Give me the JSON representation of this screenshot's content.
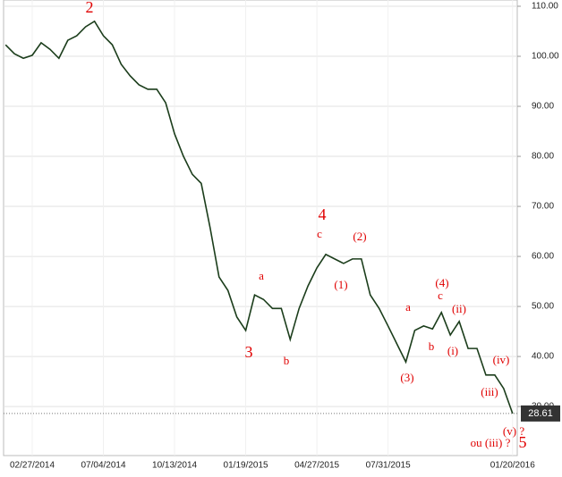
{
  "chart_data": {
    "type": "line",
    "categories": [
      null,
      null,
      null,
      "02/27/2014",
      null,
      null,
      null,
      null,
      null,
      null,
      null,
      "07/04/2014",
      null,
      null,
      null,
      null,
      null,
      null,
      null,
      "10/13/2014",
      null,
      null,
      null,
      null,
      null,
      null,
      null,
      "01/19/2015",
      null,
      null,
      null,
      null,
      null,
      null,
      null,
      "04/27/2015",
      null,
      null,
      null,
      null,
      null,
      null,
      null,
      "07/31/2015",
      null,
      null,
      null,
      null,
      null,
      null,
      null,
      null,
      null,
      null,
      null,
      null,
      null,
      "01/20/2016"
    ],
    "series": [
      {
        "color": "#1b3d1b",
        "values": [
          102.3,
          100.5,
          99.6,
          100.2,
          102.7,
          101.4,
          99.6,
          103.2,
          104.1,
          105.9,
          107,
          104.1,
          102.3,
          98.4,
          96.1,
          94.3,
          93.4,
          93.4,
          90.7,
          84.5,
          80,
          76.4,
          74.6,
          65.7,
          55.9,
          53.2,
          47.9,
          45.2,
          52.3,
          51.4,
          49.6,
          49.6,
          43.4,
          49.6,
          54.1,
          57.7,
          60.4,
          59.5,
          58.6,
          59.5,
          59.5,
          52.3,
          49.6,
          46.1,
          42.5,
          38.9,
          45.2,
          46.1,
          45.5,
          48.8,
          44.3,
          47,
          41.6,
          41.6,
          36.3,
          36.3,
          33.6,
          28.61
        ]
      }
    ],
    "last_value_label": "28.61",
    "ylim": [
      20.2,
      111.25
    ],
    "yticks": [
      {
        "value": 30,
        "label": "30.00"
      },
      {
        "value": 40,
        "label": "40.00"
      },
      {
        "value": 50,
        "label": "50.00"
      },
      {
        "value": 60,
        "label": "60.00"
      },
      {
        "value": 70,
        "label": "70.00"
      },
      {
        "value": 80,
        "label": "80.00"
      },
      {
        "value": 90,
        "label": "90.00"
      },
      {
        "value": 100,
        "label": "100.00"
      },
      {
        "value": 110,
        "label": "110.00"
      }
    ],
    "grid": true,
    "annotations": [
      "2",
      "4",
      "c",
      "(2)",
      "a",
      "(1)",
      "3",
      "b",
      "a",
      "c",
      "(4)",
      "(ii)",
      "b",
      "(i)",
      "(3)",
      "(iv)",
      "(iii)",
      "(v) ?",
      "ou (iii) ?",
      "5"
    ]
  }
}
